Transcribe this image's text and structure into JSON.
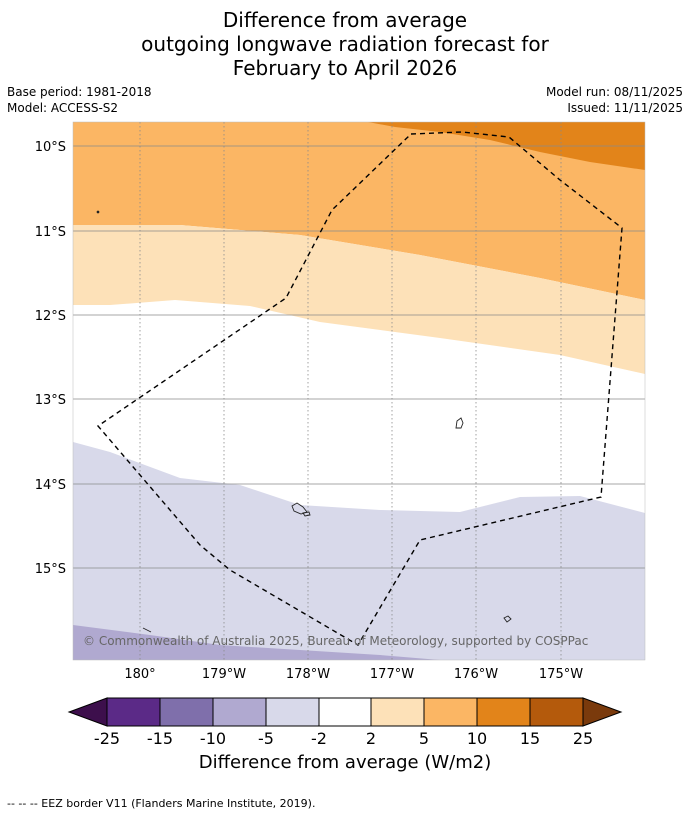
{
  "title": {
    "line1": "Difference from average",
    "line2": "outgoing longwave radiation forecast for",
    "line3": "February to April 2026"
  },
  "meta": {
    "base_period": "Base period: 1981-2018",
    "model": "Model: ACCESS-S2",
    "model_run": "Model run: 08/11/2025",
    "issued": "Issued: 11/11/2025"
  },
  "map": {
    "lat_labels": [
      "10°S",
      "11°S",
      "12°S",
      "13°S",
      "14°S",
      "15°S"
    ],
    "lon_labels": [
      "180°",
      "179°W",
      "178°W",
      "177°W",
      "176°W",
      "175°W"
    ],
    "copyright": "© Commonwealth of Australia 2025, Bureau of Meteorology, supported by COSPPac"
  },
  "colorbar": {
    "ticks": [
      "-25",
      "-15",
      "-10",
      "-5",
      "-2",
      "2",
      "5",
      "10",
      "15",
      "25"
    ],
    "colors": {
      "under": "#3d0f4c",
      "c1": "#5b2a87",
      "c2": "#7f6fab",
      "c3": "#b0a9d0",
      "c4": "#d8d9ea",
      "c5": "#ffffff",
      "c6": "#fde1b8",
      "c7": "#fbb664",
      "c8": "#e2841a",
      "c9": "#b45a0c",
      "over": "#7a3a0c"
    },
    "label": "Difference from average (W/m2)"
  },
  "footer": {
    "eez": "--  --  -- EEZ border V11 (Flanders Marine Institute, 2019)."
  }
}
